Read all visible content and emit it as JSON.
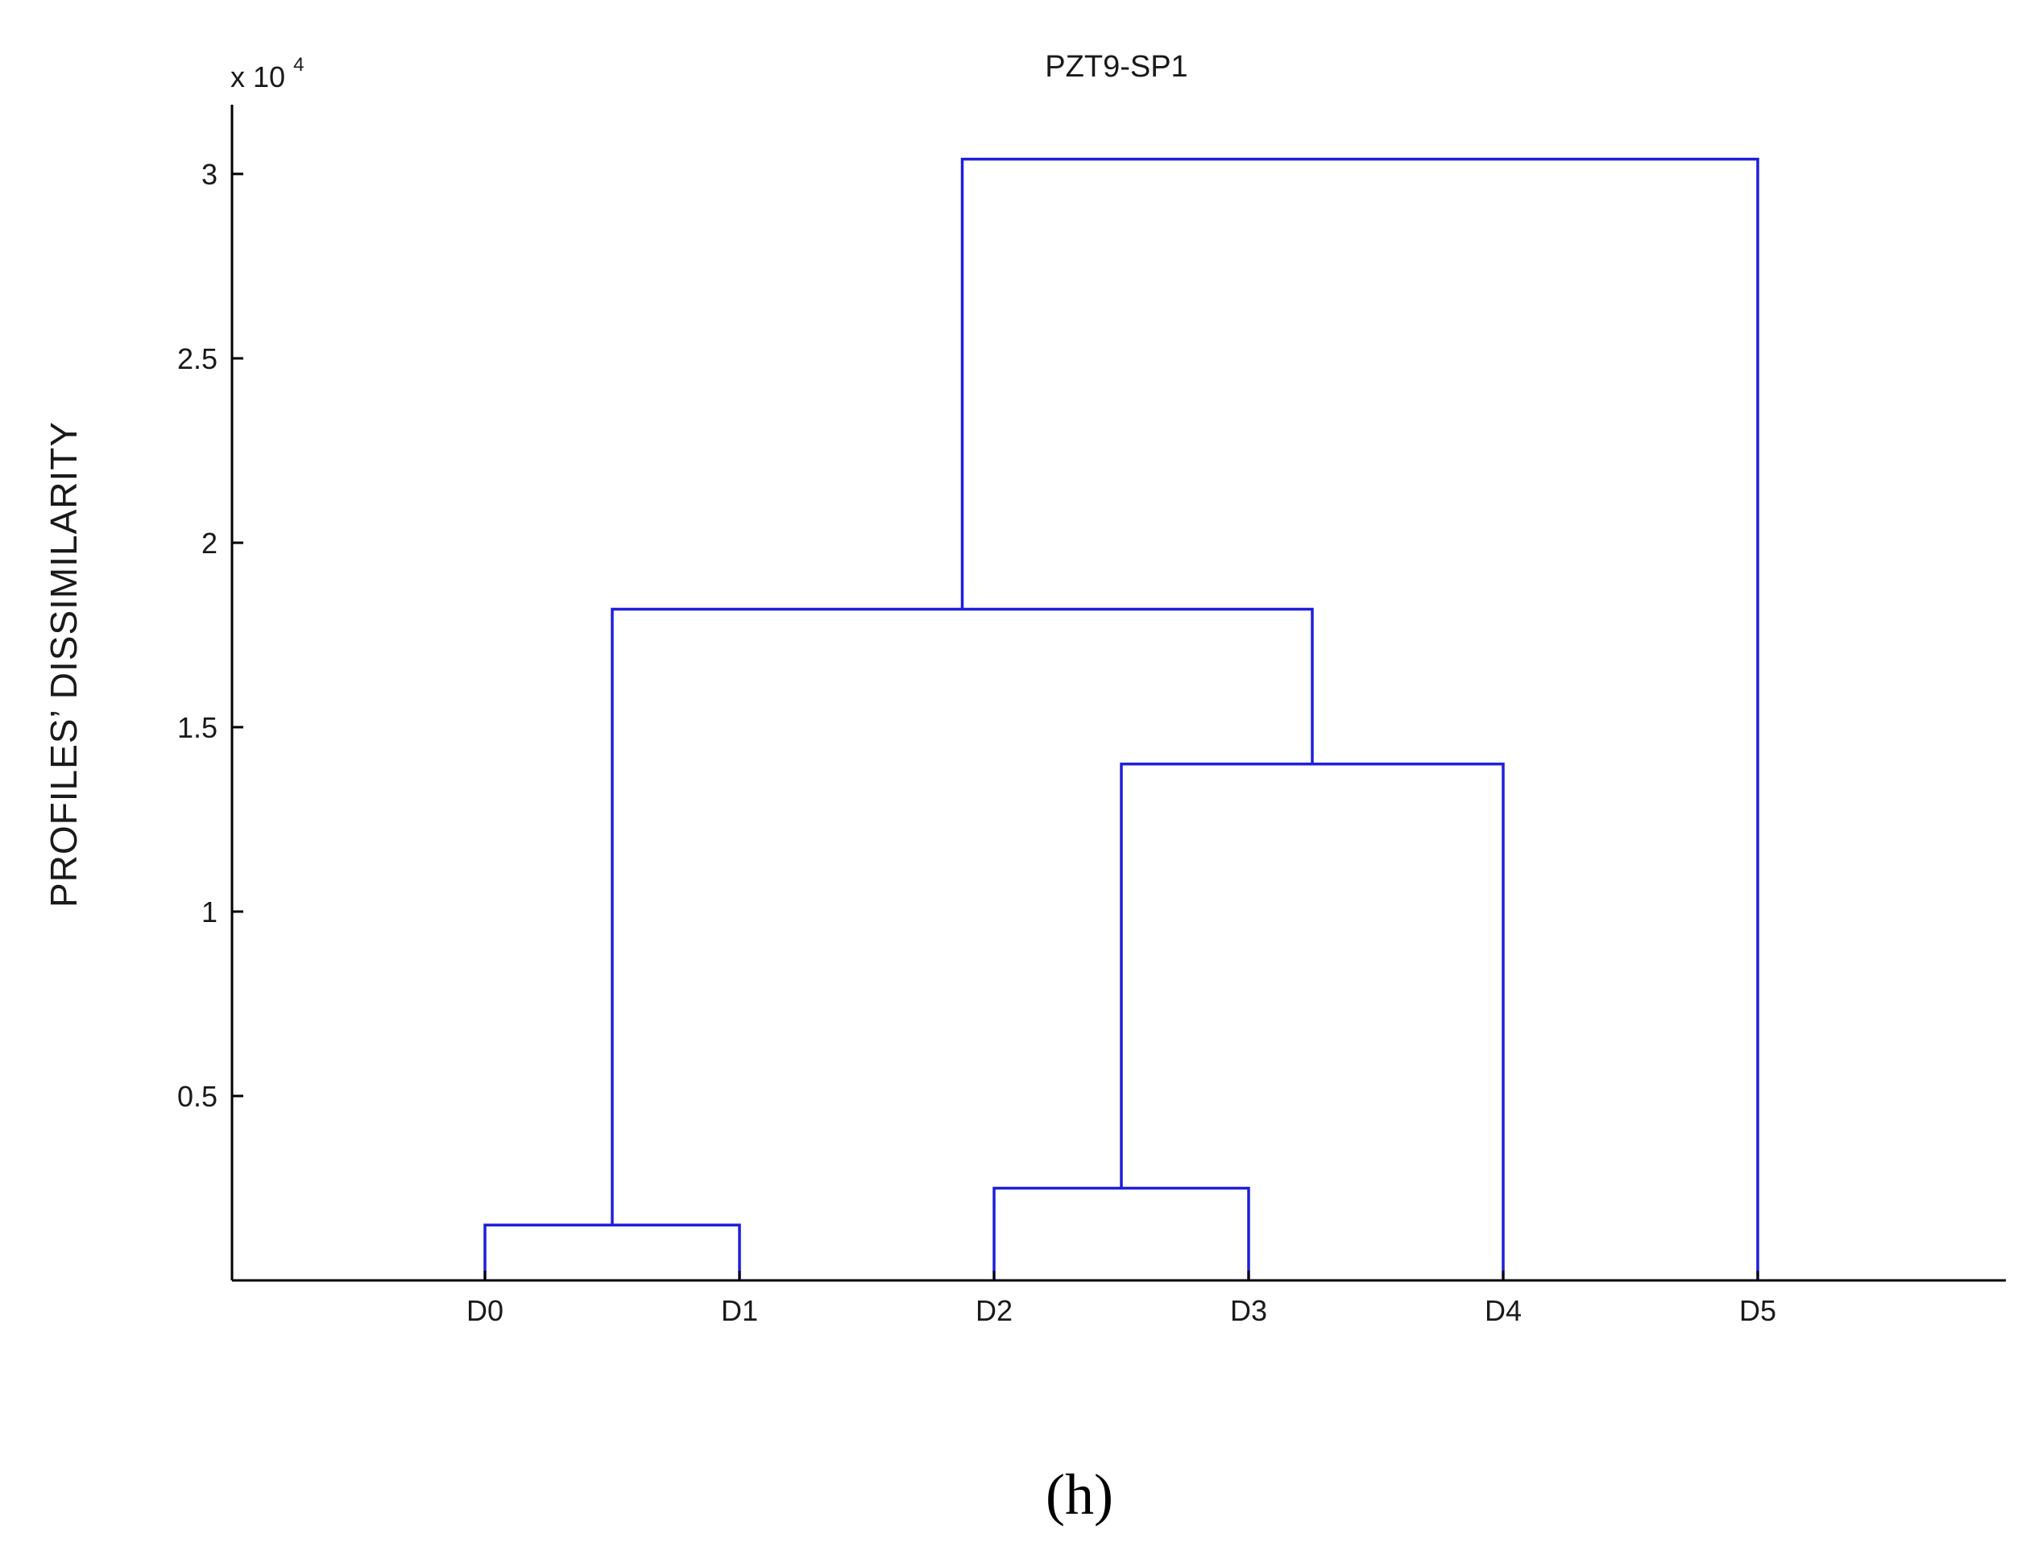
{
  "chart_data": {
    "type": "dendrogram",
    "title": "PZT9-SP1",
    "ylabel": "PROFILES’ DISSIMILARITY",
    "y_multiplier_label": "x 10",
    "y_multiplier_exponent": "4",
    "ylim": [
      0,
      3.2
    ],
    "yticks": [
      {
        "value": 0.5,
        "label": "0.5"
      },
      {
        "value": 1,
        "label": "1"
      },
      {
        "value": 1.5,
        "label": "1.5"
      },
      {
        "value": 2,
        "label": "2"
      },
      {
        "value": 2.5,
        "label": "2.5"
      },
      {
        "value": 3,
        "label": "3"
      }
    ],
    "leaves": [
      "D0",
      "D1",
      "D2",
      "D3",
      "D4",
      "D5"
    ],
    "merges": [
      {
        "left": "D0",
        "right": "D1",
        "height": 0.15
      },
      {
        "left": "D2",
        "right": "D3",
        "height": 0.25
      },
      {
        "left": "(D2,D3)",
        "right": "D4",
        "height": 1.4
      },
      {
        "left": "(D0,D1)",
        "right": "((D2,D3),D4)",
        "height": 1.82
      },
      {
        "left": "((D0,D1),((D2,D3),D4))",
        "right": "D5",
        "height": 3.04
      }
    ],
    "line_color": "#1f1fdc",
    "caption": "(h)"
  }
}
